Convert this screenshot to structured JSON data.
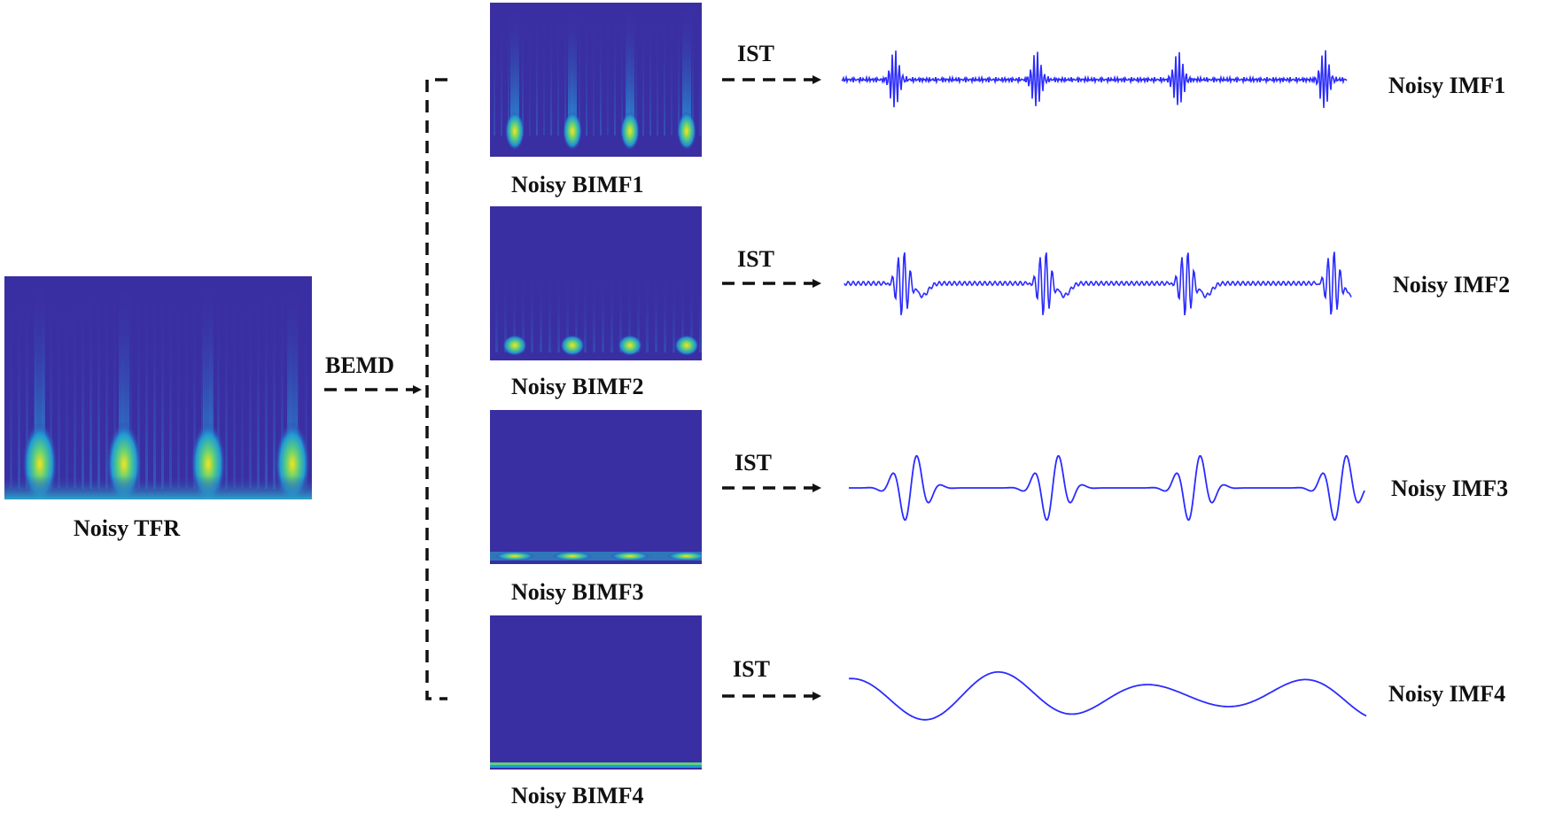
{
  "input": {
    "label": "Noisy TFR"
  },
  "operation": {
    "label": "BEMD"
  },
  "branches": [
    {
      "bimf_label": "Noisy BIMF1",
      "transform_label": "IST",
      "imf_label": "Noisy IMF1"
    },
    {
      "bimf_label": "Noisy BIMF2",
      "transform_label": "IST",
      "imf_label": "Noisy IMF2"
    },
    {
      "bimf_label": "Noisy BIMF3",
      "transform_label": "IST",
      "imf_label": "Noisy IMF3"
    },
    {
      "bimf_label": "Noisy BIMF4",
      "transform_label": "IST",
      "imf_label": "Noisy IMF4"
    }
  ],
  "colors": {
    "map_background": "#3a2ea3",
    "map_mid": "#1f9bd6",
    "map_hot": "#f6e51b",
    "waveform": "#2b2bff",
    "arrow": "#111111"
  }
}
